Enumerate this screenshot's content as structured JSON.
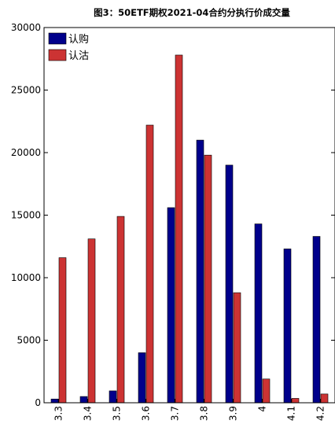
{
  "chart_data": {
    "type": "bar",
    "title": "图3：50ETF期权2021-04合约分执行价成交量",
    "xlabel": "",
    "ylabel": "",
    "categories": [
      "3.3",
      "3.4",
      "3.5",
      "3.6",
      "3.7",
      "3.8",
      "3.9",
      "4",
      "4.1",
      "4.2"
    ],
    "series": [
      {
        "name": "认购",
        "color": "#00008b",
        "values": [
          300,
          500,
          950,
          4000,
          15600,
          21000,
          19000,
          14300,
          12300,
          13300
        ]
      },
      {
        "name": "认沽",
        "color": "#cc3333",
        "values": [
          11600,
          13100,
          14900,
          22200,
          27800,
          19800,
          8800,
          1900,
          350,
          700
        ]
      }
    ],
    "ylim": [
      0,
      30000
    ],
    "yticks": [
      0,
      5000,
      10000,
      15000,
      20000,
      25000,
      30000
    ],
    "legend_position": "top-left",
    "grid": false
  }
}
